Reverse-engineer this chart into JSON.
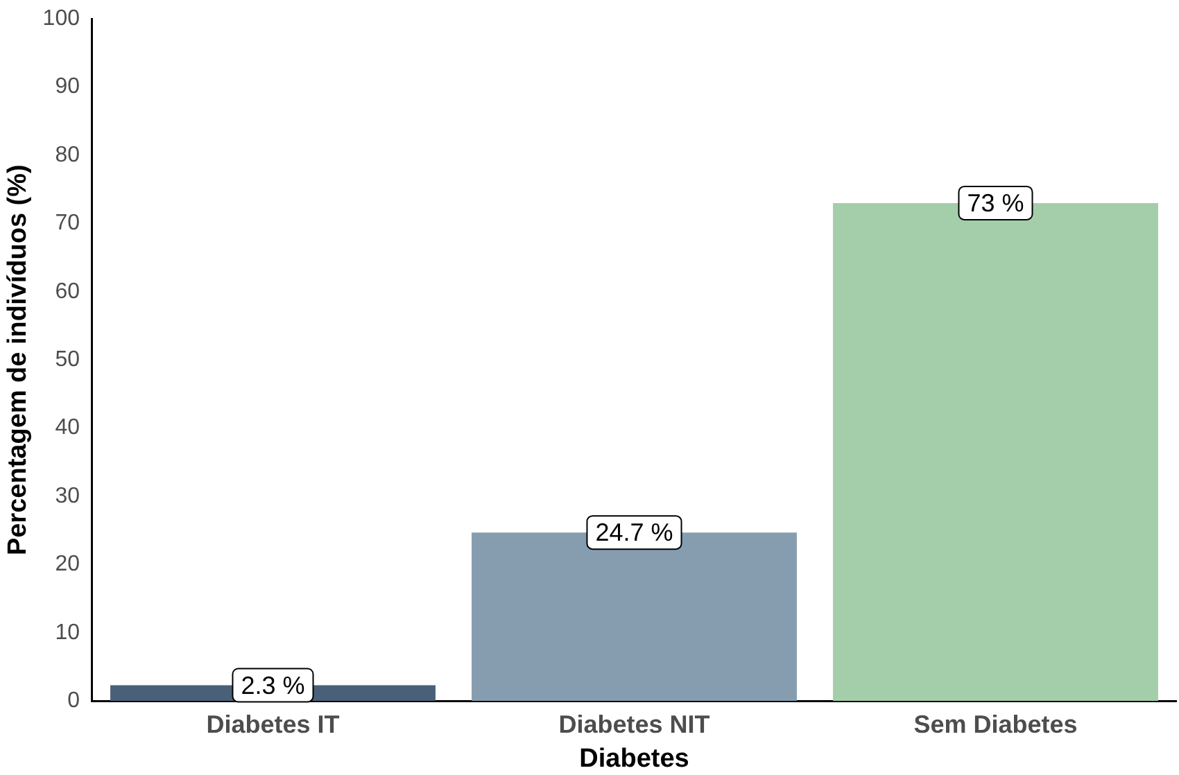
{
  "chart_data": {
    "type": "bar",
    "xlabel": "Diabetes",
    "ylabel": "Percentagem de indivíduos (%)",
    "categories": [
      "Diabetes IT",
      "Diabetes NIT",
      "Sem Diabetes"
    ],
    "values": [
      2.3,
      24.7,
      73
    ],
    "value_labels": [
      "2.3 %",
      "24.7 %",
      "73 %"
    ],
    "colors": [
      "#4a6078",
      "#869db0",
      "#a3cea9"
    ],
    "ylim": [
      0,
      100
    ],
    "yticks": [
      0,
      10,
      20,
      30,
      40,
      50,
      60,
      70,
      80,
      90,
      100
    ],
    "grid": false,
    "legend": false
  }
}
